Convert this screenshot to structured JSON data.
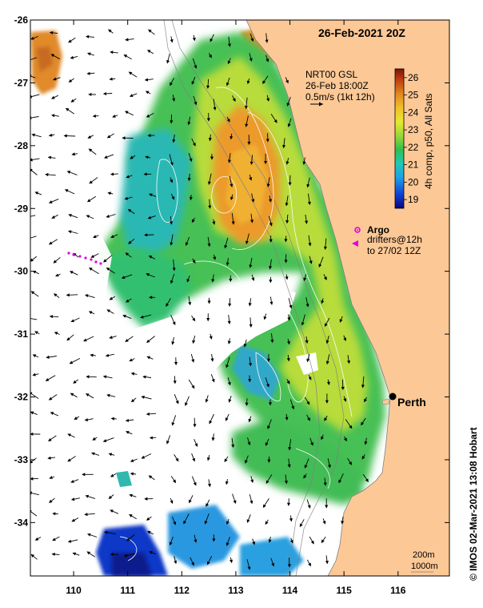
{
  "title": "26-Feb-2021 20Z",
  "current_info": {
    "line1": "NRT00 GSL",
    "line2": "26-Feb 18:00Z",
    "line3": "0.5m/s (1kt 12h)"
  },
  "colorbar": {
    "label": "4h comp, p50, All Sats",
    "ticks": [
      "26",
      "25",
      "24",
      "23",
      "22",
      "21",
      "20",
      "19"
    ],
    "min": 18.5,
    "max": 26.5
  },
  "legend": {
    "argo_label": "Argo",
    "drifters_line1": "drifters@12h",
    "drifters_line2": "to 27/02 12Z",
    "argo_color": "#e000e0",
    "drifter_color": "#e000e0"
  },
  "city": {
    "name": "Perth",
    "lon": 115.86,
    "lat": -31.95
  },
  "depth_labels": {
    "d1": "200m",
    "d2": "1000m"
  },
  "credit": "© IMOS 02-Mar-2021 13:08 Hobart",
  "axes": {
    "x_ticks": [
      "110",
      "111",
      "112",
      "113",
      "114",
      "115",
      "116"
    ],
    "y_ticks": [
      "-26",
      "-27",
      "-28",
      "-29",
      "-30",
      "-31",
      "-32",
      "-33",
      "-34"
    ],
    "lon_range": [
      109.2,
      116.95
    ],
    "lat_range": [
      -34.85,
      -26.0
    ]
  },
  "colors": {
    "land": "#fcc896",
    "background": "#ffffff"
  }
}
